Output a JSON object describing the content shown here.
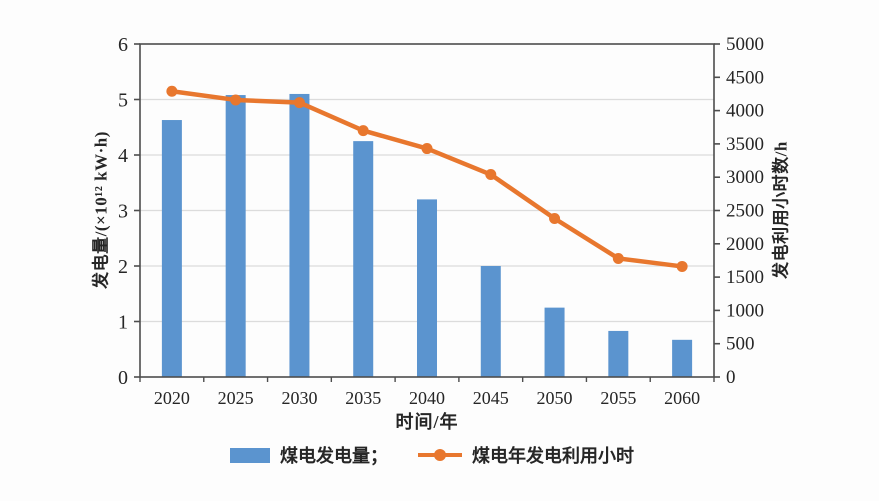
{
  "chart_data": {
    "type": "bar+line",
    "categories": [
      "2020",
      "2025",
      "2030",
      "2035",
      "2040",
      "2045",
      "2050",
      "2055",
      "2060"
    ],
    "series": [
      {
        "name": "煤电发电量",
        "type": "bar",
        "axis": "left",
        "values": [
          4.63,
          5.08,
          5.1,
          4.25,
          3.2,
          2.0,
          1.25,
          0.83,
          0.67
        ]
      },
      {
        "name": "煤电年发电利用小时",
        "type": "line",
        "axis": "right",
        "values": [
          4290,
          4160,
          4120,
          3700,
          3430,
          3040,
          2380,
          1780,
          1660
        ]
      }
    ],
    "left_axis": {
      "label": "发电量/(×10¹² kW·h)",
      "min": 0,
      "max": 6,
      "step": 1,
      "tick_labels": [
        "0",
        "1",
        "2",
        "3",
        "4",
        "5",
        "6"
      ]
    },
    "right_axis": {
      "label": "发电利用小时数/h",
      "min": 0,
      "max": 5000,
      "step": 500,
      "tick_labels": [
        "0",
        "500",
        "1000",
        "1500",
        "2000",
        "2500",
        "3000",
        "3500",
        "4000",
        "4500",
        "5000"
      ]
    },
    "xlabel": "时间/年",
    "legend": [
      {
        "label": "煤电发电量；",
        "marker": "bar-swatch"
      },
      {
        "label": "煤电年发电利用小时",
        "marker": "line-dot-swatch"
      }
    ],
    "legend_position": "bottom-center",
    "grid": "horizontal",
    "colors": {
      "bar": "#5b94cf",
      "line": "#e8772e",
      "grid": "#dcdcdc",
      "axis": "#4d4d4d",
      "text": "#262626"
    }
  }
}
